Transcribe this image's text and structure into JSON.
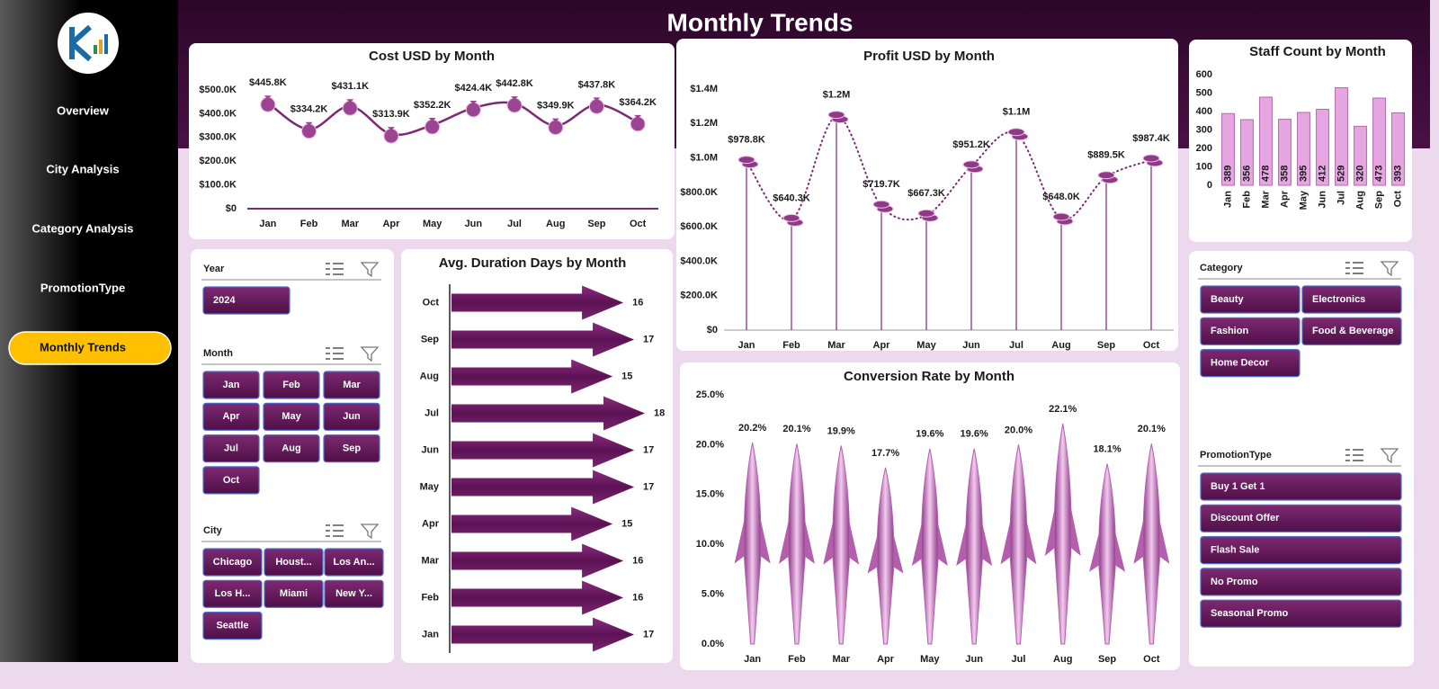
{
  "sidebar": {
    "nav": [
      {
        "label": "Overview"
      },
      {
        "label": "City Analysis"
      },
      {
        "label": "Category Analysis"
      },
      {
        "label": "PromotionType"
      },
      {
        "label": "Monthly Trends",
        "active": true
      }
    ]
  },
  "header": {
    "title": "Monthly Trends"
  },
  "chart_data": [
    {
      "type": "line",
      "title": "Cost USD by Month",
      "line_style": "solid",
      "color": "#7b2a74",
      "categories": [
        "Jan",
        "Feb",
        "Mar",
        "Apr",
        "May",
        "Jun",
        "Jul",
        "Aug",
        "Sep",
        "Oct"
      ],
      "values": [
        445800,
        334200,
        431100,
        313900,
        352200,
        424400,
        442800,
        349900,
        437800,
        364200
      ],
      "value_labels": [
        "$445.8K",
        "$334.2K",
        "$431.1K",
        "$313.9K",
        "$352.2K",
        "$424.4K",
        "$442.8K",
        "$349.9K",
        "$437.8K",
        "$364.2K"
      ],
      "ylim": [
        0,
        500000
      ],
      "yticks": [
        {
          "value": 0,
          "label": "$0"
        },
        {
          "value": 100000,
          "label": "$100.0K"
        },
        {
          "value": 200000,
          "label": "$200.0K"
        },
        {
          "value": 300000,
          "label": "$300.0K"
        },
        {
          "value": 400000,
          "label": "$400.0K"
        },
        {
          "value": 500000,
          "label": "$500.0K"
        }
      ]
    },
    {
      "type": "line",
      "title": "Profit USD by Month",
      "line_style": "dotted",
      "drop_lines": true,
      "color": "#7b2a74",
      "categories": [
        "Jan",
        "Feb",
        "Mar",
        "Apr",
        "May",
        "Jun",
        "Jul",
        "Aug",
        "Sep",
        "Oct"
      ],
      "values": [
        978800,
        640300,
        1240000,
        719700,
        667300,
        951200,
        1140000,
        648000,
        889500,
        987400
      ],
      "value_labels": [
        "$978.8K",
        "$640.3K",
        "$1.2M",
        "$719.7K",
        "$667.3K",
        "$951.2K",
        "$1.1M",
        "$648.0K",
        "$889.5K",
        "$987.4K"
      ],
      "ylim": [
        0,
        1400000
      ],
      "yticks": [
        {
          "value": 0,
          "label": "$0"
        },
        {
          "value": 200000,
          "label": "$200.0K"
        },
        {
          "value": 400000,
          "label": "$400.0K"
        },
        {
          "value": 600000,
          "label": "$600.0K"
        },
        {
          "value": 800000,
          "label": "$800.0K"
        },
        {
          "value": 1000000,
          "label": "$1.0M"
        },
        {
          "value": 1200000,
          "label": "$1.2M"
        },
        {
          "value": 1400000,
          "label": "$1.4M"
        }
      ]
    },
    {
      "type": "bar",
      "title": "Staff Count by Month",
      "color": "#e6a6e2",
      "categories": [
        "Jan",
        "Feb",
        "Mar",
        "Apr",
        "May",
        "Jun",
        "Jul",
        "Aug",
        "Sep",
        "Oct"
      ],
      "values": [
        389,
        356,
        478,
        358,
        395,
        412,
        529,
        320,
        473,
        393
      ],
      "ylim": [
        0,
        600
      ],
      "yticks": [
        0,
        100,
        200,
        300,
        400,
        500,
        600
      ]
    },
    {
      "type": "arrow",
      "title": "Avg. Duration Days by Month",
      "color": "#6f1a66",
      "categories": [
        "Jan",
        "Feb",
        "Mar",
        "Apr",
        "May",
        "Jun",
        "Jul",
        "Aug",
        "Sep",
        "Oct"
      ],
      "values": [
        17,
        16,
        16,
        15,
        17,
        17,
        18,
        15,
        17,
        16
      ]
    },
    {
      "type": "rocket",
      "title": "Conversion Rate by Month",
      "color": "#b45fae",
      "categories": [
        "Jan",
        "Feb",
        "Mar",
        "Apr",
        "May",
        "Jun",
        "Jul",
        "Aug",
        "Sep",
        "Oct"
      ],
      "values": [
        20.2,
        20.1,
        19.9,
        17.7,
        19.6,
        19.6,
        20.0,
        22.1,
        18.1,
        20.1
      ],
      "value_labels": [
        "20.2%",
        "20.1%",
        "19.9%",
        "17.7%",
        "19.6%",
        "19.6%",
        "20.0%",
        "22.1%",
        "18.1%",
        "20.1%"
      ],
      "ylim": [
        0,
        25
      ],
      "yticks": [
        {
          "value": 0,
          "label": "0.0%"
        },
        {
          "value": 5,
          "label": "5.0%"
        },
        {
          "value": 10,
          "label": "10.0%"
        },
        {
          "value": 15,
          "label": "15.0%"
        },
        {
          "value": 20,
          "label": "20.0%"
        },
        {
          "value": 25,
          "label": "25.0%"
        }
      ]
    }
  ],
  "slicers": [
    {
      "title": "Year",
      "items": [
        "2024"
      ]
    },
    {
      "title": "Month",
      "items": [
        "Jan",
        "Feb",
        "Mar",
        "Apr",
        "May",
        "Jun",
        "Jul",
        "Aug",
        "Sep",
        "Oct"
      ]
    },
    {
      "title": "City",
      "items": [
        "Chicago",
        "Houst...",
        "Los An...",
        "Los H...",
        "Miami",
        "New Y...",
        "Seattle"
      ]
    },
    {
      "title": "Category",
      "items": [
        "Beauty",
        "Electronics",
        "Fashion",
        "Food & Beverage",
        "Home Decor"
      ]
    },
    {
      "title": "PromotionType",
      "items": [
        "Buy 1 Get 1",
        "Discount Offer",
        "Flash Sale",
        "No Promo",
        "Seasonal Promo"
      ]
    }
  ]
}
